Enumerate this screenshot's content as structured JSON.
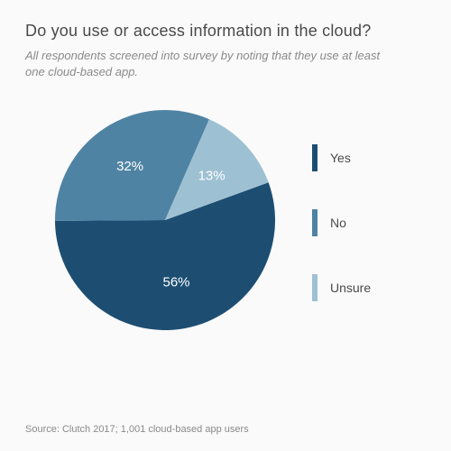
{
  "title": "Do you use or access information in the cloud?",
  "subtitle": "All respondents screened into survey by noting that they use at least one cloud-based app.",
  "source": "Source: Clutch 2017; 1,001 cloud-based app users",
  "chart": {
    "type": "pie",
    "background_color": "#fafafa",
    "radius": 122,
    "start_angle_deg": -20,
    "label_fontsize": 15,
    "label_color": "#ffffff",
    "title_color": "#4a4a4a",
    "title_fontsize": 18,
    "subtitle_color": "#8a8a8a",
    "subtitle_fontsize": 13,
    "source_color": "#8a8a8a",
    "source_fontsize": 11,
    "slices": [
      {
        "label": "Yes",
        "value": 56,
        "color": "#1d4e72",
        "display": "56%"
      },
      {
        "label": "No",
        "value": 32,
        "color": "#4f83a3",
        "display": "32%"
      },
      {
        "label": "Unsure",
        "value": 13,
        "color": "#9ec0d3",
        "display": "13%"
      }
    ],
    "legend": {
      "swatch_width": 6,
      "swatch_height": 30,
      "label_fontsize": 14,
      "label_color": "#4a4a4a"
    }
  }
}
